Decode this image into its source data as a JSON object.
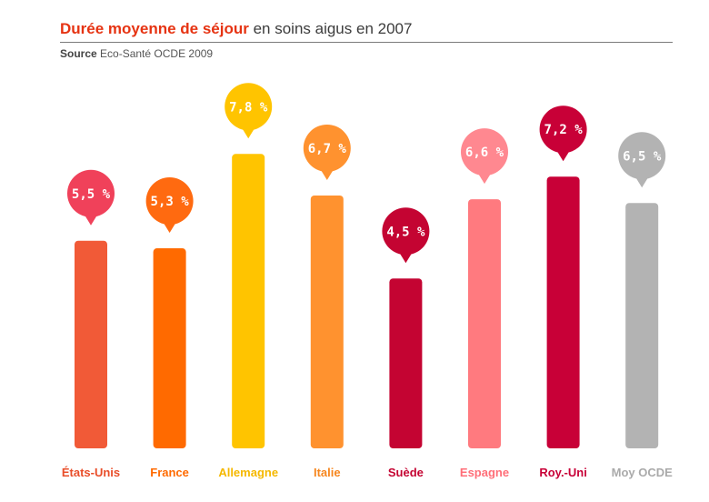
{
  "header": {
    "title_bold": "Durée moyenne de séjour",
    "title_rest": "en soins aigus en 2007",
    "source_label": "Source",
    "source_text": "Eco-Santé OCDE 2009"
  },
  "chart_data": {
    "type": "bar",
    "title": "Durée moyenne de séjour en soins aigus en 2007",
    "categories": [
      "États-Unis",
      "France",
      "Allemagne",
      "Italie",
      "Suède",
      "Espagne",
      "Roy.-Uni",
      "Moy OCDE"
    ],
    "values": [
      5.5,
      5.3,
      7.8,
      6.7,
      4.5,
      6.6,
      7.2,
      6.5
    ],
    "value_labels": [
      "5,5 %",
      "5,3 %",
      "7,8 %",
      "6,7 %",
      "4,5 %",
      "6,6 %",
      "7,2 %",
      "6,5 %"
    ],
    "colors": [
      "#f15a37",
      "#ff6a00",
      "#ffc400",
      "#ff922f",
      "#c40432",
      "#ff7a7f",
      "#c80037",
      "#b3b3b3"
    ],
    "label_colors": [
      "#e94e2a",
      "#ff6a00",
      "#f5b800",
      "#f6861e",
      "#c40432",
      "#ff6e78",
      "#c80037",
      "#aaaaaa"
    ],
    "bubble_colors": [
      "#f0415a",
      "#ff6a10",
      "#ffc400",
      "#ff922f",
      "#c40432",
      "#ff8890",
      "#c80037",
      "#b3b3b3"
    ],
    "xlabel": "",
    "ylabel": "",
    "ylim": [
      0,
      8
    ],
    "grid": false,
    "legend": "none"
  }
}
